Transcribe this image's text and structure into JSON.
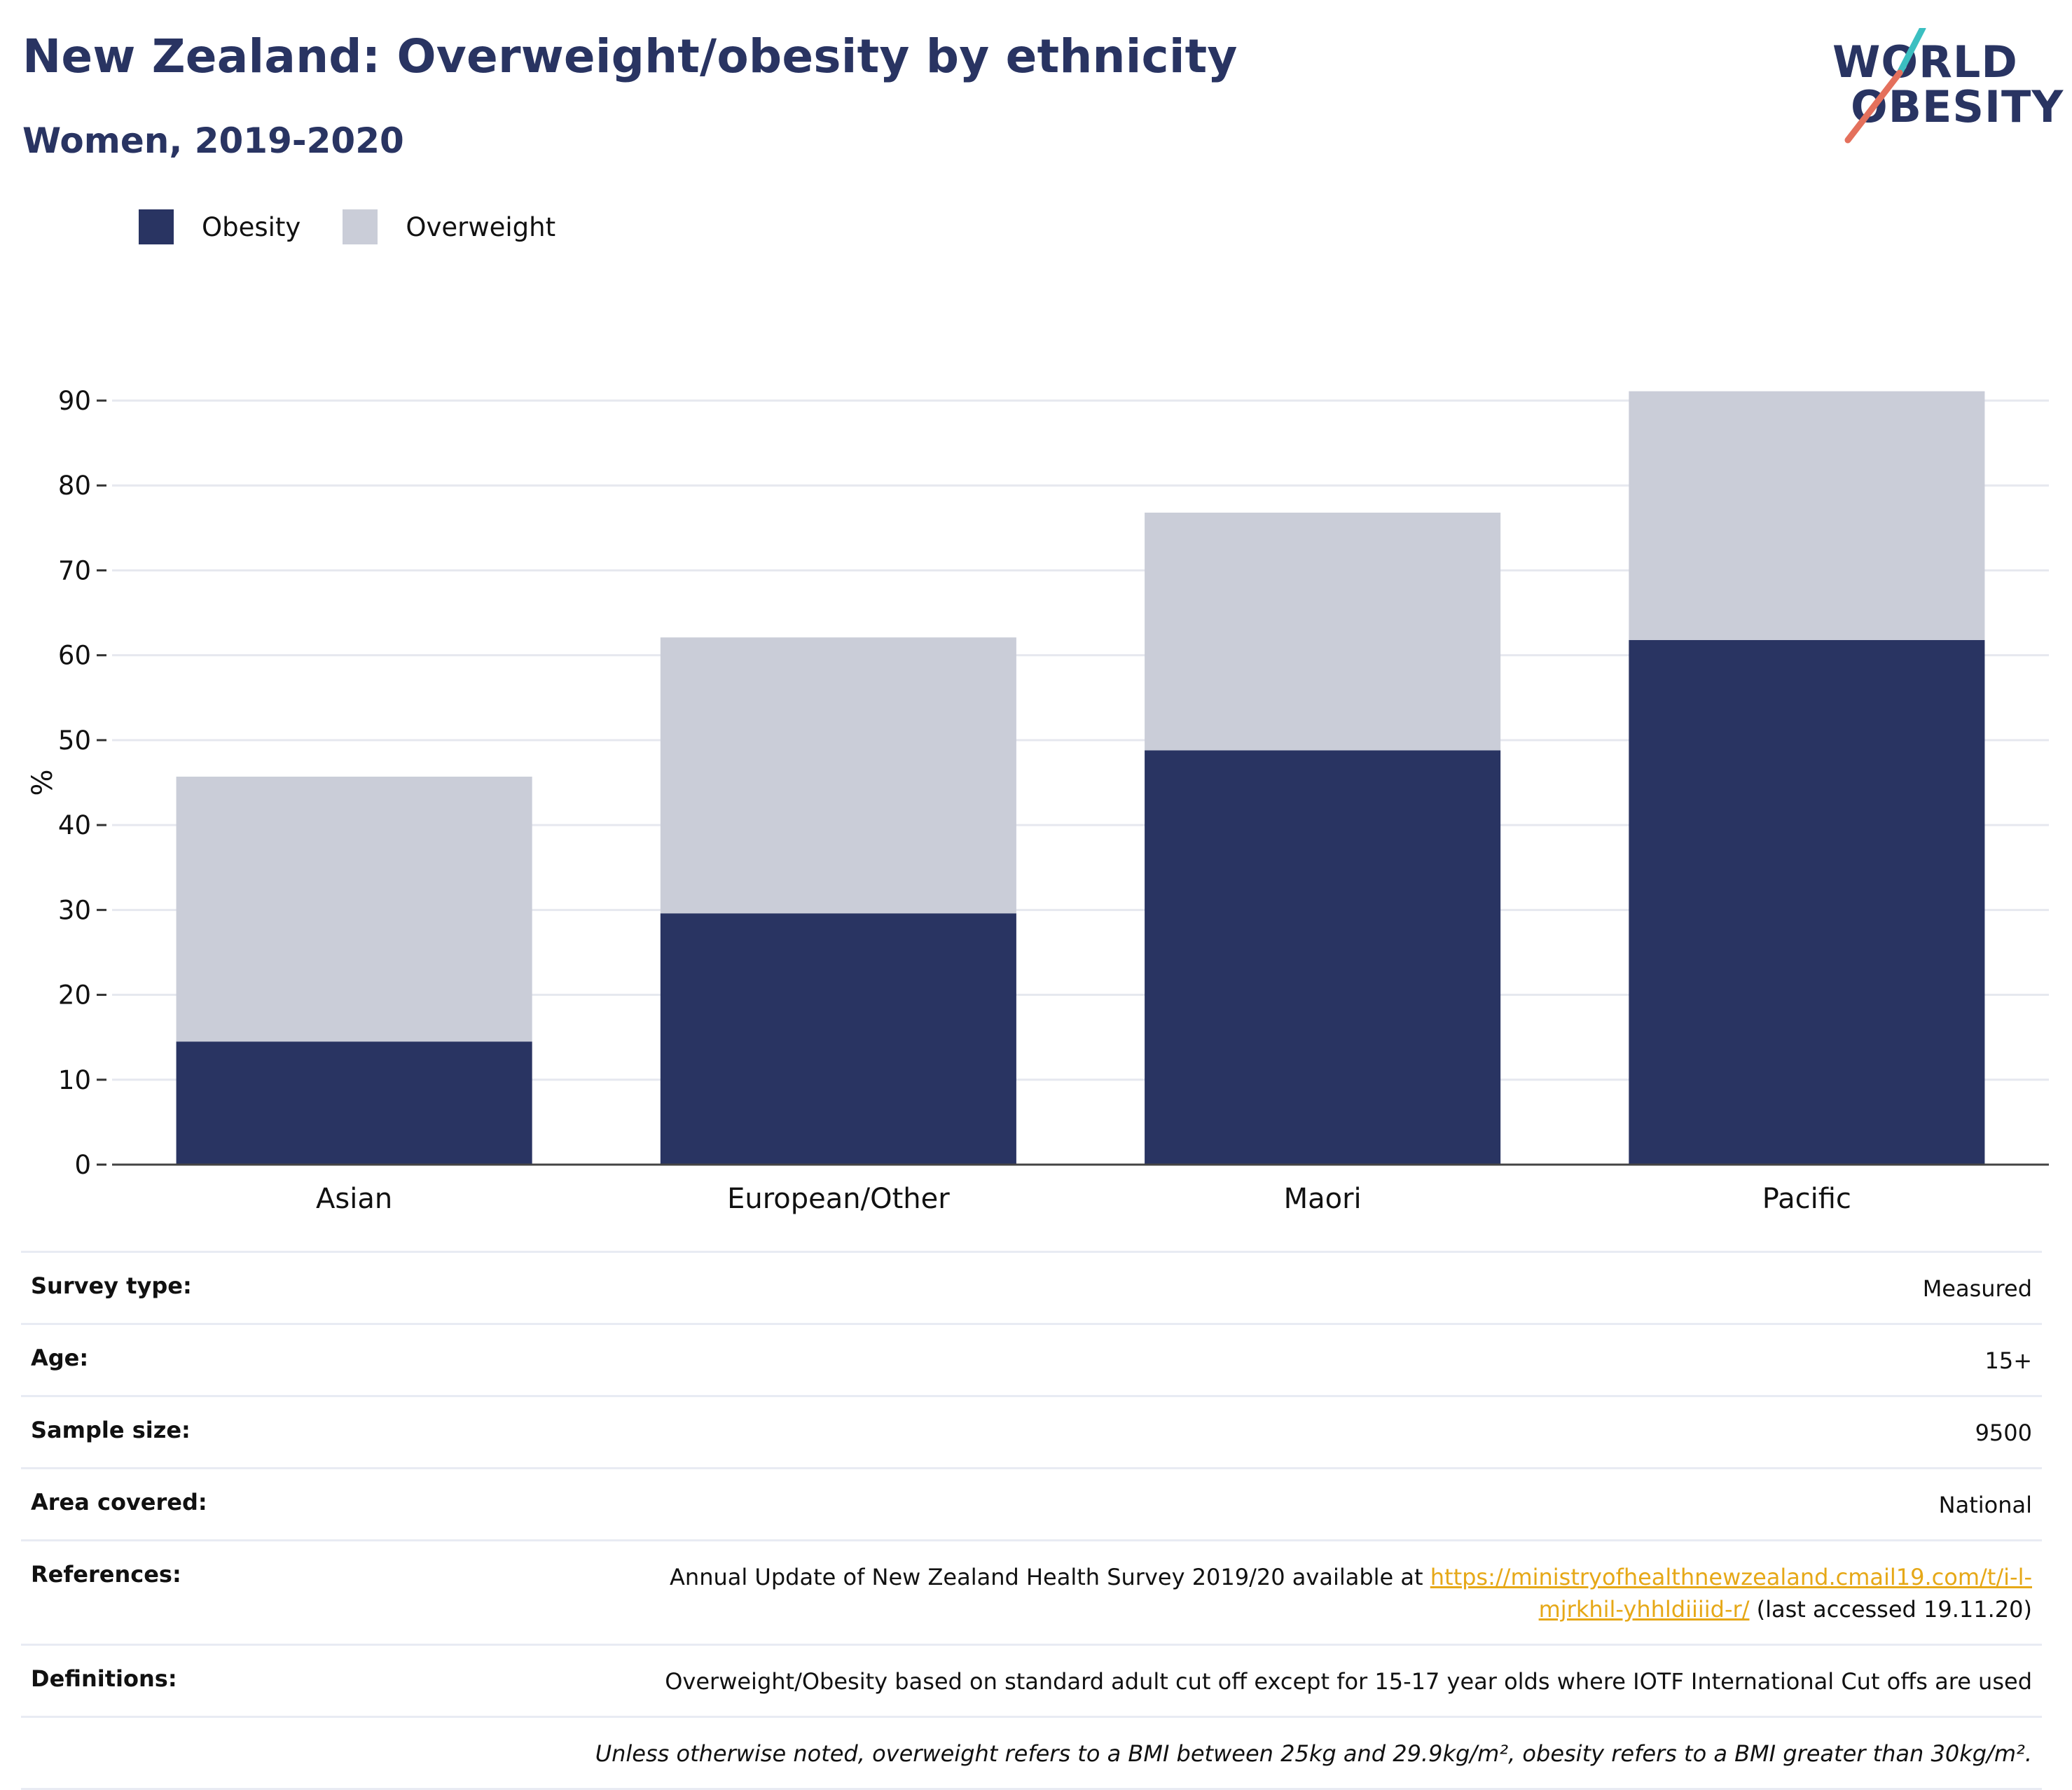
{
  "header": {
    "title": "New Zealand: Overweight/obesity by ethnicity",
    "subtitle": "Women, 2019-2020"
  },
  "logo": {
    "line1": "WORLD",
    "line2": "OBESITY",
    "accent_colors": [
      "#3bbfc1",
      "#e4705c"
    ]
  },
  "legend": [
    {
      "label": "Obesity",
      "color": "#293462"
    },
    {
      "label": "Overweight",
      "color": "#cacdd8"
    }
  ],
  "chart_data": {
    "type": "bar",
    "stacked": true,
    "categories": [
      "Asian",
      "European/Other",
      "Maori",
      "Pacific"
    ],
    "series": [
      {
        "name": "Obesity",
        "color": "#293462",
        "values": [
          14.5,
          29.6,
          48.8,
          61.8
        ]
      },
      {
        "name": "Overweight",
        "color": "#cacdd8",
        "values": [
          31.2,
          32.5,
          28.0,
          29.3
        ]
      }
    ],
    "ylabel": "%",
    "ylim": [
      0,
      90
    ],
    "yticks": [
      0,
      10,
      20,
      30,
      40,
      50,
      60,
      70,
      80,
      90
    ],
    "grid": true,
    "legend_position": "top-left"
  },
  "meta": {
    "rows": [
      {
        "key": "Survey type:",
        "value": "Measured"
      },
      {
        "key": "Age:",
        "value": "15+"
      },
      {
        "key": "Sample size:",
        "value": "9500"
      },
      {
        "key": "Area covered:",
        "value": "National"
      }
    ],
    "references": {
      "key": "References:",
      "text_before": "Annual Update of New Zealand Health Survey 2019/20 available at ",
      "link": "https://ministryofhealthnewzealand.cmail19.com/t/i-l-mjrkhil-yhhldiiiid-r/",
      "text_after": " (last accessed 19.11.20)"
    },
    "definitions": {
      "key": "Definitions:",
      "value": "Overweight/Obesity based on standard adult cut off except for 15-17 year olds where IOTF International Cut offs are used"
    },
    "note": "Unless otherwise noted, overweight refers to a BMI between 25kg and 29.9kg/m², obesity refers to a BMI greater than 30kg/m²."
  }
}
